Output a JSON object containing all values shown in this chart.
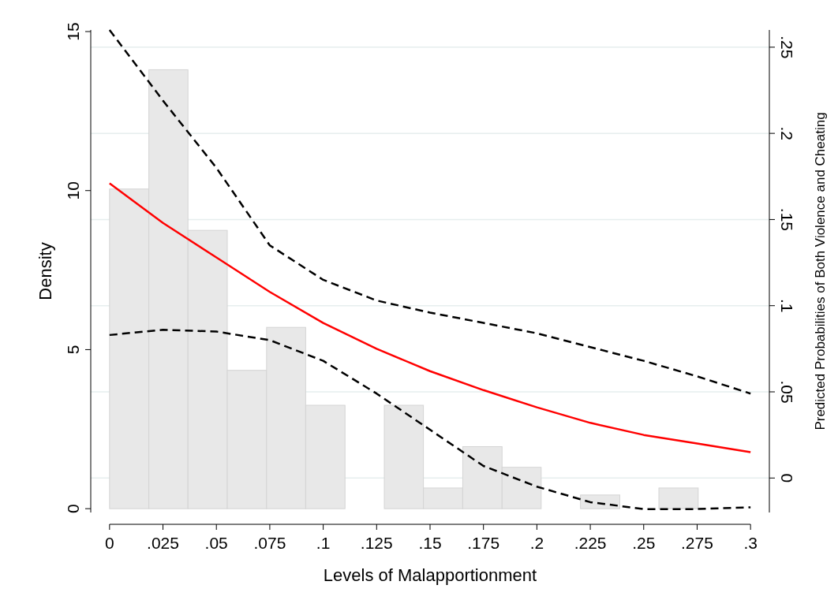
{
  "chart_data": {
    "type": "histogram",
    "xlabel": "Levels of Malapportionment",
    "ylabel": "Density",
    "y2label": "Predicted Probabilities of Both Violence and Cheating",
    "bins": [
      0,
      0.0184,
      0.0367,
      0.0551,
      0.0735,
      0.0918,
      0.1102,
      0.1286,
      0.1469,
      0.1653,
      0.1837,
      0.202,
      0.2204,
      0.2388,
      0.2571,
      0.2755
    ],
    "values": [
      10.05,
      13.8,
      8.75,
      4.35,
      5.7,
      3.25,
      0,
      3.25,
      0.65,
      1.95,
      1.3,
      0,
      0.43,
      0,
      0.65
    ],
    "color": "#e8e8e8",
    "series": [
      {
        "type": "line",
        "axis": "y2",
        "color": "#000000",
        "line_style": "dashed",
        "x": [
          0,
          0.025,
          0.05,
          0.075,
          0.1,
          0.125,
          0.15,
          0.175,
          0.2,
          0.225,
          0.25,
          0.275,
          0.3
        ],
        "values": [
          0.26,
          0.219,
          0.18,
          0.135,
          0.115,
          0.103,
          0.096,
          0.09,
          0.084,
          0.076,
          0.068,
          0.059,
          0.049
        ]
      },
      {
        "type": "line",
        "axis": "y2",
        "color": "#ff0000",
        "line_style": "solid",
        "x": [
          0,
          0.025,
          0.05,
          0.075,
          0.1,
          0.125,
          0.15,
          0.175,
          0.2,
          0.225,
          0.25,
          0.275,
          0.3
        ],
        "values": [
          0.171,
          0.148,
          0.128,
          0.108,
          0.09,
          0.075,
          0.062,
          0.051,
          0.041,
          0.032,
          0.025,
          0.02,
          0.015
        ]
      },
      {
        "type": "line",
        "axis": "y2",
        "color": "#000000",
        "line_style": "dashed",
        "x": [
          0,
          0.025,
          0.05,
          0.075,
          0.1,
          0.125,
          0.15,
          0.175,
          0.2,
          0.225,
          0.25,
          0.275,
          0.3
        ],
        "values": [
          0.083,
          0.086,
          0.085,
          0.08,
          0.068,
          0.049,
          0.028,
          0.007,
          -0.005,
          -0.014,
          -0.018,
          -0.018,
          -0.017
        ]
      }
    ],
    "xlim": [
      -0.0088,
      0.3088
    ],
    "xticks": [
      0,
      {
        "value": 0.025,
        "label": ".025"
      },
      {
        "value": 0.05,
        "label": ".05"
      },
      {
        "value": 0.075,
        "label": ".075"
      },
      {
        "value": 0.1,
        "label": ".1"
      },
      {
        "value": 0.125,
        "label": ".125"
      },
      {
        "value": 0.15,
        "label": ".15"
      },
      {
        "value": 0.175,
        "label": ".175"
      },
      {
        "value": 0.2,
        "label": ".2"
      },
      {
        "value": 0.225,
        "label": ".225"
      },
      {
        "value": 0.25,
        "label": ".25"
      },
      {
        "value": 0.275,
        "label": ".275"
      },
      {
        "value": 0.3,
        "label": ".3"
      }
    ],
    "ylim": [
      -0.12,
      15.05
    ],
    "yticks": [
      0,
      5,
      10,
      15
    ],
    "y2lim": [
      -0.02,
      0.26
    ],
    "y2ticks": [
      0,
      {
        "value": 0.05,
        "label": ".05"
      },
      {
        "value": 0.1,
        "label": ".1"
      },
      {
        "value": 0.15,
        "label": ".15"
      },
      {
        "value": 0.2,
        "label": ".2"
      },
      {
        "value": 0.25,
        "label": ".25"
      }
    ],
    "grid": "y2"
  }
}
